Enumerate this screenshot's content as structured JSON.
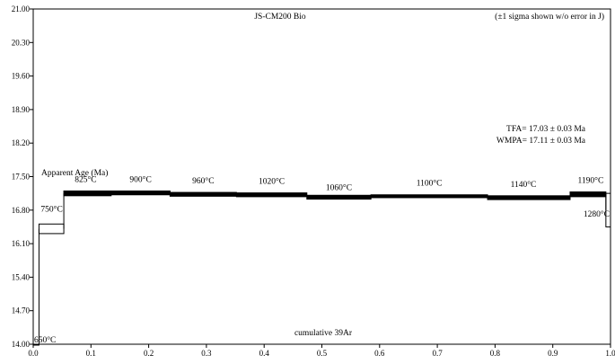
{
  "chart_data": {
    "type": "line",
    "title": "JS-CM200 Bio",
    "note": "(±1 sigma shown w/o error in J)",
    "xlabel": "cumulative 39Ar",
    "ylabel": "Apparent Age (Ma)",
    "xlim": [
      0.0,
      1.0
    ],
    "ylim": [
      14.0,
      21.0
    ],
    "xticks": [
      "0.0",
      "0.1",
      "0.2",
      "0.3",
      "0.4",
      "0.5",
      "0.6",
      "0.7",
      "0.8",
      "0.9",
      "1.0"
    ],
    "yticks": [
      "14.00",
      "14.70",
      "15.40",
      "16.10",
      "16.80",
      "17.50",
      "18.20",
      "18.90",
      "19.60",
      "20.30",
      "21.00"
    ],
    "grid": false,
    "summary": [
      "TFA= 17.03 ± 0.03 Ma",
      "WMPA= 17.11 ± 0.03 Ma"
    ],
    "steps": [
      {
        "label": "650°C",
        "x0": 0.0,
        "x1": 0.01,
        "age": 14.0,
        "err": 0.0
      },
      {
        "label": "750°C",
        "x0": 0.01,
        "x1": 0.053,
        "age": 16.41,
        "err": 0.1
      },
      {
        "label": "825°C",
        "x0": 0.053,
        "x1": 0.135,
        "age": 17.15,
        "err": 0.05
      },
      {
        "label": "900°C",
        "x0": 0.135,
        "x1": 0.237,
        "age": 17.16,
        "err": 0.04
      },
      {
        "label": "960°C",
        "x0": 0.237,
        "x1": 0.352,
        "age": 17.13,
        "err": 0.04
      },
      {
        "label": "1020°C",
        "x0": 0.352,
        "x1": 0.474,
        "age": 17.12,
        "err": 0.04
      },
      {
        "label": "1060°C",
        "x0": 0.474,
        "x1": 0.585,
        "age": 17.07,
        "err": 0.04
      },
      {
        "label": "1100°C",
        "x0": 0.585,
        "x1": 0.787,
        "age": 17.09,
        "err": 0.03
      },
      {
        "label": "1140°C",
        "x0": 0.787,
        "x1": 0.93,
        "age": 17.06,
        "err": 0.04
      },
      {
        "label": "1190°C",
        "x0": 0.93,
        "x1": 0.992,
        "age": 17.13,
        "err": 0.05
      },
      {
        "label": "1280°C",
        "x0": 0.992,
        "x1": 1.0,
        "age": 16.8,
        "err": 0.35
      }
    ]
  }
}
